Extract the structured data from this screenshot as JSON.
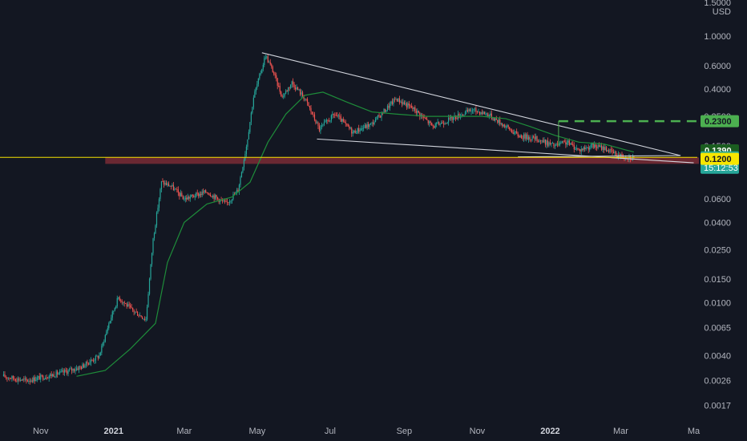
{
  "chart_data": {
    "type": "candlestick",
    "currency": "USD",
    "scale": "log",
    "ylim": [
      0.0014,
      1.55
    ],
    "grid": false,
    "y_ticks": [
      "1.5000",
      "1.0000",
      "0.6000",
      "0.4000",
      "0.2500",
      "0.1500",
      "0.0600",
      "0.0400",
      "0.0250",
      "0.0150",
      "0.0100",
      "0.0065",
      "0.0040",
      "0.0026",
      "0.0017"
    ],
    "y_tick_values": [
      1.5,
      1.0,
      0.6,
      0.4,
      0.25,
      0.15,
      0.06,
      0.04,
      0.025,
      0.015,
      0.01,
      0.0065,
      0.004,
      0.0026,
      0.0017
    ],
    "x_ticks": [
      {
        "label": "Nov",
        "date": "2020-11-01",
        "bold": false
      },
      {
        "label": "2021",
        "date": "2021-01-01",
        "bold": true
      },
      {
        "label": "Mar",
        "date": "2021-03-01",
        "bold": false
      },
      {
        "label": "May",
        "date": "2021-05-01",
        "bold": false
      },
      {
        "label": "Jul",
        "date": "2021-07-01",
        "bold": false
      },
      {
        "label": "Sep",
        "date": "2021-09-01",
        "bold": false
      },
      {
        "label": "Nov",
        "date": "2021-11-01",
        "bold": false
      },
      {
        "label": "2022",
        "date": "2022-01-01",
        "bold": true
      },
      {
        "label": "Mar",
        "date": "2022-03-01",
        "bold": false
      },
      {
        "label": "Ma",
        "date": "2022-05-01",
        "bold": false
      }
    ],
    "price_path": [
      [
        "2020-10-01",
        0.0028
      ],
      [
        "2020-10-20",
        0.0026
      ],
      [
        "2020-11-05",
        0.0028
      ],
      [
        "2020-11-20",
        0.003
      ],
      [
        "2020-12-05",
        0.0033
      ],
      [
        "2020-12-20",
        0.004
      ],
      [
        "2020-12-28",
        0.007
      ],
      [
        "2021-01-05",
        0.011
      ],
      [
        "2021-01-15",
        0.009
      ],
      [
        "2021-01-28",
        0.0075
      ],
      [
        "2021-02-03",
        0.03
      ],
      [
        "2021-02-10",
        0.08
      ],
      [
        "2021-02-18",
        0.075
      ],
      [
        "2021-03-01",
        0.06
      ],
      [
        "2021-03-20",
        0.068
      ],
      [
        "2021-04-05",
        0.055
      ],
      [
        "2021-04-15",
        0.07
      ],
      [
        "2021-04-22",
        0.15
      ],
      [
        "2021-04-28",
        0.35
      ],
      [
        "2021-05-03",
        0.5
      ],
      [
        "2021-05-08",
        0.72
      ],
      [
        "2021-05-14",
        0.55
      ],
      [
        "2021-05-22",
        0.35
      ],
      [
        "2021-05-30",
        0.45
      ],
      [
        "2021-06-10",
        0.34
      ],
      [
        "2021-06-22",
        0.2
      ],
      [
        "2021-07-05",
        0.26
      ],
      [
        "2021-07-20",
        0.19
      ],
      [
        "2021-08-05",
        0.22
      ],
      [
        "2021-08-25",
        0.34
      ],
      [
        "2021-09-10",
        0.28
      ],
      [
        "2021-09-25",
        0.21
      ],
      [
        "2021-10-10",
        0.24
      ],
      [
        "2021-10-28",
        0.28
      ],
      [
        "2021-11-10",
        0.26
      ],
      [
        "2021-11-25",
        0.21
      ],
      [
        "2021-12-05",
        0.18
      ],
      [
        "2021-12-20",
        0.17
      ],
      [
        "2022-01-05",
        0.15
      ],
      [
        "2022-01-15",
        0.16
      ],
      [
        "2022-01-25",
        0.14
      ],
      [
        "2022-02-05",
        0.15
      ],
      [
        "2022-02-15",
        0.145
      ],
      [
        "2022-02-25",
        0.13
      ],
      [
        "2022-03-05",
        0.125
      ],
      [
        "2022-03-12",
        0.1231
      ]
    ],
    "moving_average": [
      [
        "2020-12-01",
        0.0028
      ],
      [
        "2020-12-25",
        0.0031
      ],
      [
        "2021-01-15",
        0.0045
      ],
      [
        "2021-02-05",
        0.007
      ],
      [
        "2021-02-15",
        0.02
      ],
      [
        "2021-03-01",
        0.04
      ],
      [
        "2021-03-20",
        0.055
      ],
      [
        "2021-04-10",
        0.062
      ],
      [
        "2021-04-25",
        0.08
      ],
      [
        "2021-05-10",
        0.16
      ],
      [
        "2021-05-25",
        0.26
      ],
      [
        "2021-06-10",
        0.36
      ],
      [
        "2021-06-25",
        0.38
      ],
      [
        "2021-07-15",
        0.32
      ],
      [
        "2021-08-05",
        0.27
      ],
      [
        "2021-08-25",
        0.26
      ],
      [
        "2021-09-20",
        0.25
      ],
      [
        "2021-10-15",
        0.25
      ],
      [
        "2021-11-05",
        0.25
      ],
      [
        "2021-11-25",
        0.24
      ],
      [
        "2021-12-15",
        0.21
      ],
      [
        "2022-01-05",
        0.18
      ],
      [
        "2022-01-25",
        0.16
      ],
      [
        "2022-02-15",
        0.155
      ],
      [
        "2022-03-05",
        0.14
      ],
      [
        "2022-03-12",
        0.135
      ]
    ],
    "trendlines": [
      {
        "name": "falling-wedge-upper",
        "from": [
          "2021-05-05",
          0.75
        ],
        "to": [
          "2022-04-20",
          0.127
        ]
      },
      {
        "name": "falling-wedge-lower",
        "from": [
          "2021-06-20",
          0.169
        ],
        "to": [
          "2022-05-01",
          0.112
        ]
      },
      {
        "name": "support-line",
        "from": [
          "2021-12-05",
          0.124
        ],
        "to": [
          "2022-04-20",
          0.127
        ]
      }
    ],
    "support_zone": {
      "top": 0.123,
      "bottom": 0.11,
      "from": "2020-12-25"
    },
    "target_level": {
      "value": 0.23,
      "from": "2022-01-08",
      "to": "2022-05-20"
    },
    "horizontal_line": {
      "value": 0.1231
    },
    "price_tags": [
      {
        "label": "0.2300",
        "value": 0.23,
        "bg": "#4caf50",
        "fg": "#131722"
      },
      {
        "label": "0.1390",
        "value": 0.139,
        "bg": "#1b5e20",
        "fg": "#ffffff"
      },
      {
        "label": "0.1231",
        "value": 0.1231,
        "bg": "#26a69a",
        "fg": "#ffffff",
        "countdown": "15:12:53"
      },
      {
        "label": "0.1200",
        "value": 0.12,
        "bg": "#f7e600",
        "fg": "#131722"
      }
    ],
    "colors": {
      "up": "#26a69a",
      "down": "#ef5350",
      "ma": "#1e8c3a",
      "trend": "#d1d4dc",
      "zone": "#7a2c35",
      "target": "#4caf50",
      "hline": "#f5e300",
      "background": "#131722",
      "axis_text": "#b2b5be"
    }
  }
}
